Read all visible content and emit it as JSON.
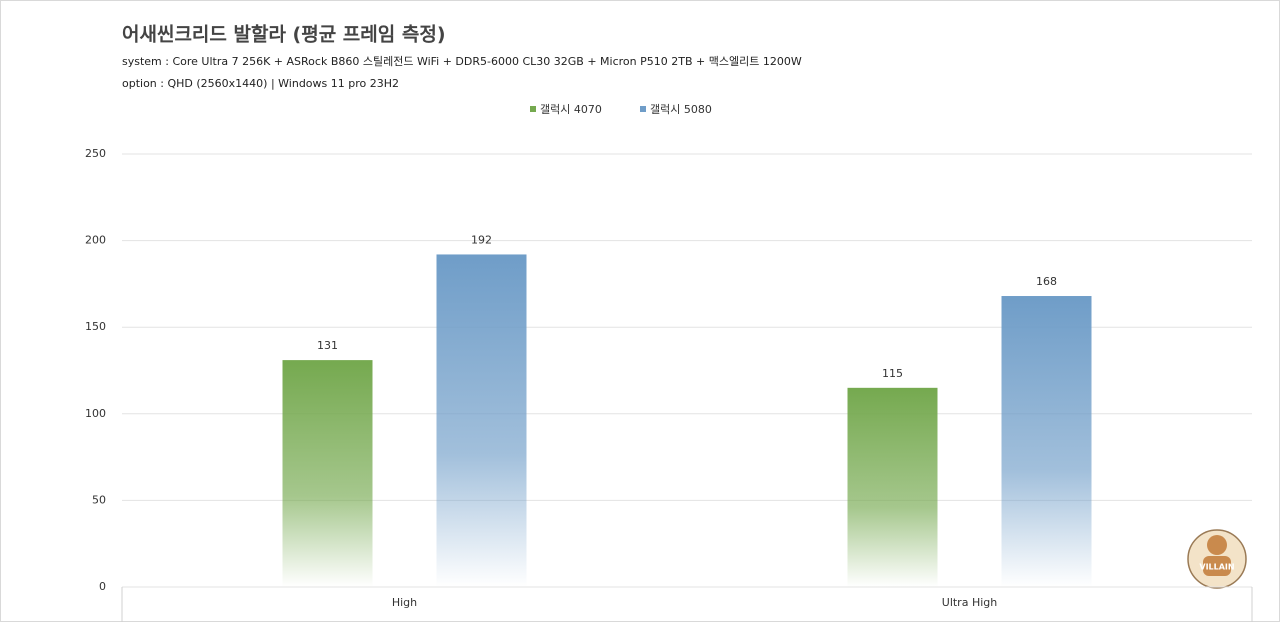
{
  "chart_data": {
    "type": "bar",
    "title": "어새씬크리드 발할라 (평균 프레임 측정)",
    "subtitle_lines": [
      "system : Core Ultra 7 256K + ASRock B860 스틸레전드 WiFi + DDR5-6000 CL30 32GB + Micron P510 2TB + 맥스엘리트 1200W",
      "option :  QHD (2560x1440) | Windows 11 pro 23H2"
    ],
    "categories": [
      "High",
      "Ultra High"
    ],
    "series": [
      {
        "name": "갤럭시 4070",
        "color": "#75a94f",
        "values": [
          131,
          115
        ]
      },
      {
        "name": "갤럭시 5080",
        "color": "#6f9dc8",
        "values": [
          192,
          168
        ]
      }
    ],
    "ylim": [
      0,
      250
    ],
    "yticks": [
      0,
      50,
      100,
      150,
      200,
      250
    ],
    "grid": true,
    "legend": "top",
    "watermark": "VILLAIN"
  }
}
